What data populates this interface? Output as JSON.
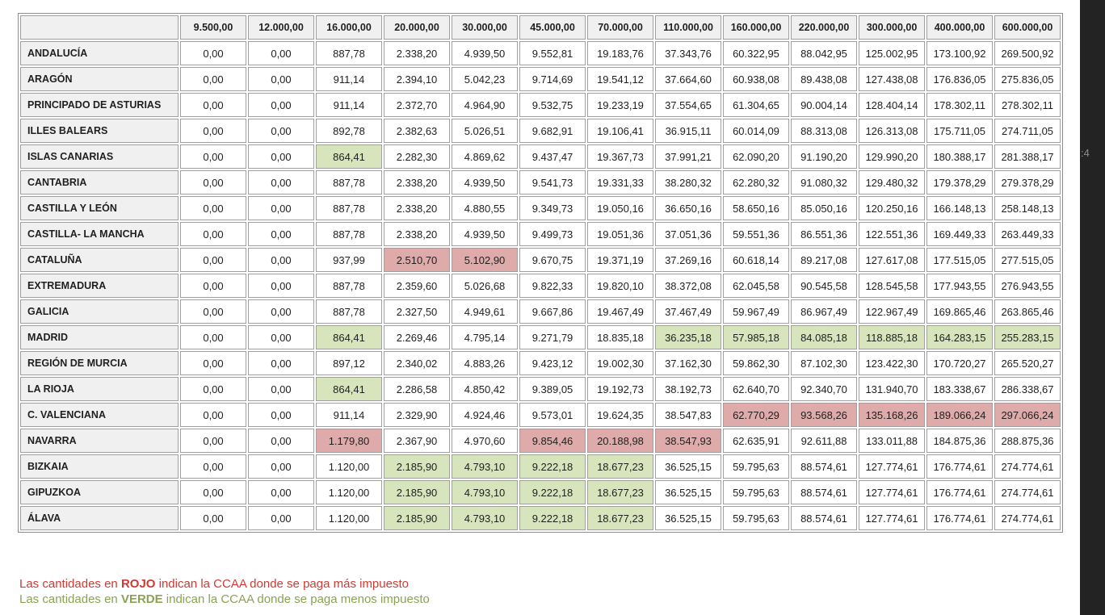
{
  "table": {
    "columns": [
      "9.500,00",
      "12.000,00",
      "16.000,00",
      "20.000,00",
      "30.000,00",
      "45.000,00",
      "70.000,00",
      "110.000,00",
      "160.000,00",
      "220.000,00",
      "300.000,00",
      "400.000,00",
      "600.000,00"
    ],
    "rows": [
      {
        "label": "ANDALUCÍA",
        "values": [
          "0,00",
          "0,00",
          "887,78",
          "2.338,20",
          "4.939,50",
          "9.552,81",
          "19.183,76",
          "37.343,76",
          "60.322,95",
          "88.042,95",
          "125.002,95",
          "173.100,92",
          "269.500,92"
        ],
        "highlights": [
          "",
          "",
          "",
          "",
          "",
          "",
          "",
          "",
          "",
          "",
          "",
          "",
          ""
        ]
      },
      {
        "label": "ARAGÓN",
        "values": [
          "0,00",
          "0,00",
          "911,14",
          "2.394,10",
          "5.042,23",
          "9.714,69",
          "19.541,12",
          "37.664,60",
          "60.938,08",
          "89.438,08",
          "127.438,08",
          "176.836,05",
          "275.836,05"
        ],
        "highlights": [
          "",
          "",
          "",
          "",
          "",
          "",
          "",
          "",
          "",
          "",
          "",
          "",
          ""
        ]
      },
      {
        "label": "PRINCIPADO DE ASTURIAS",
        "values": [
          "0,00",
          "0,00",
          "911,14",
          "2.372,70",
          "4.964,90",
          "9.532,75",
          "19.233,19",
          "37.554,65",
          "61.304,65",
          "90.004,14",
          "128.404,14",
          "178.302,11",
          "278.302,11"
        ],
        "highlights": [
          "",
          "",
          "",
          "",
          "",
          "",
          "",
          "",
          "",
          "",
          "",
          "",
          ""
        ]
      },
      {
        "label": "ILLES BALEARS",
        "values": [
          "0,00",
          "0,00",
          "892,78",
          "2.382,63",
          "5.026,51",
          "9.682,91",
          "19.106,41",
          "36.915,11",
          "60.014,09",
          "88.313,08",
          "126.313,08",
          "175.711,05",
          "274.711,05"
        ],
        "highlights": [
          "",
          "",
          "",
          "",
          "",
          "",
          "",
          "",
          "",
          "",
          "",
          "",
          ""
        ]
      },
      {
        "label": "ISLAS CANARIAS",
        "values": [
          "0,00",
          "0,00",
          "864,41",
          "2.282,30",
          "4.869,62",
          "9.437,47",
          "19.367,73",
          "37.991,21",
          "62.090,20",
          "91.190,20",
          "129.990,20",
          "180.388,17",
          "281.388,17"
        ],
        "highlights": [
          "",
          "",
          "G",
          "",
          "",
          "",
          "",
          "",
          "",
          "",
          "",
          "",
          ""
        ]
      },
      {
        "label": "CANTABRIA",
        "values": [
          "0,00",
          "0,00",
          "887,78",
          "2.338,20",
          "4.939,50",
          "9.541,73",
          "19.331,33",
          "38.280,32",
          "62.280,32",
          "91.080,32",
          "129.480,32",
          "179.378,29",
          "279.378,29"
        ],
        "highlights": [
          "",
          "",
          "",
          "",
          "",
          "",
          "",
          "",
          "",
          "",
          "",
          "",
          ""
        ]
      },
      {
        "label": "CASTILLA Y LEÓN",
        "values": [
          "0,00",
          "0,00",
          "887,78",
          "2.338,20",
          "4.880,55",
          "9.349,73",
          "19.050,16",
          "36.650,16",
          "58.650,16",
          "85.050,16",
          "120.250,16",
          "166.148,13",
          "258.148,13"
        ],
        "highlights": [
          "",
          "",
          "",
          "",
          "",
          "",
          "",
          "",
          "",
          "",
          "",
          "",
          ""
        ]
      },
      {
        "label": "CASTILLA- LA MANCHA",
        "values": [
          "0,00",
          "0,00",
          "887,78",
          "2.338,20",
          "4.939,50",
          "9.499,73",
          "19.051,36",
          "37.051,36",
          "59.551,36",
          "86.551,36",
          "122.551,36",
          "169.449,33",
          "263.449,33"
        ],
        "highlights": [
          "",
          "",
          "",
          "",
          "",
          "",
          "",
          "",
          "",
          "",
          "",
          "",
          ""
        ]
      },
      {
        "label": "CATALUÑA",
        "values": [
          "0,00",
          "0,00",
          "937,99",
          "2.510,70",
          "5.102,90",
          "9.670,75",
          "19.371,19",
          "37.269,16",
          "60.618,14",
          "89.217,08",
          "127.617,08",
          "177.515,05",
          "277.515,05"
        ],
        "highlights": [
          "",
          "",
          "",
          "R",
          "R",
          "",
          "",
          "",
          "",
          "",
          "",
          "",
          ""
        ]
      },
      {
        "label": "EXTREMADURA",
        "values": [
          "0,00",
          "0,00",
          "887,78",
          "2.359,60",
          "5.026,68",
          "9.822,33",
          "19.820,10",
          "38.372,08",
          "62.045,58",
          "90.545,58",
          "128.545,58",
          "177.943,55",
          "276.943,55"
        ],
        "highlights": [
          "",
          "",
          "",
          "",
          "",
          "",
          "",
          "",
          "",
          "",
          "",
          "",
          ""
        ]
      },
      {
        "label": "GALICIA",
        "values": [
          "0,00",
          "0,00",
          "887,78",
          "2.327,50",
          "4.949,61",
          "9.667,86",
          "19.467,49",
          "37.467,49",
          "59.967,49",
          "86.967,49",
          "122.967,49",
          "169.865,46",
          "263.865,46"
        ],
        "highlights": [
          "",
          "",
          "",
          "",
          "",
          "",
          "",
          "",
          "",
          "",
          "",
          "",
          ""
        ]
      },
      {
        "label": "MADRID",
        "values": [
          "0,00",
          "0,00",
          "864,41",
          "2.269,46",
          "4.795,14",
          "9.271,79",
          "18.835,18",
          "36.235,18",
          "57.985,18",
          "84.085,18",
          "118.885,18",
          "164.283,15",
          "255.283,15"
        ],
        "highlights": [
          "",
          "",
          "G",
          "",
          "",
          "",
          "",
          "G",
          "G",
          "G",
          "G",
          "G",
          "G"
        ]
      },
      {
        "label": "REGIÓN DE MURCIA",
        "values": [
          "0,00",
          "0,00",
          "897,12",
          "2.340,02",
          "4.883,26",
          "9.423,12",
          "19.002,30",
          "37.162,30",
          "59.862,30",
          "87.102,30",
          "123.422,30",
          "170.720,27",
          "265.520,27"
        ],
        "highlights": [
          "",
          "",
          "",
          "",
          "",
          "",
          "",
          "",
          "",
          "",
          "",
          "",
          ""
        ]
      },
      {
        "label": "LA RIOJA",
        "values": [
          "0,00",
          "0,00",
          "864,41",
          "2.286,58",
          "4.850,42",
          "9.389,05",
          "19.192,73",
          "38.192,73",
          "62.640,70",
          "92.340,70",
          "131.940,70",
          "183.338,67",
          "286.338,67"
        ],
        "highlights": [
          "",
          "",
          "G",
          "",
          "",
          "",
          "",
          "",
          "",
          "",
          "",
          "",
          ""
        ]
      },
      {
        "label": "C. VALENCIANA",
        "values": [
          "0,00",
          "0,00",
          "911,14",
          "2.329,90",
          "4.924,46",
          "9.573,01",
          "19.624,35",
          "38.547,83",
          "62.770,29",
          "93.568,26",
          "135.168,26",
          "189.066,24",
          "297.066,24"
        ],
        "highlights": [
          "",
          "",
          "",
          "",
          "",
          "",
          "",
          "",
          "R",
          "R",
          "R",
          "R",
          "R"
        ]
      },
      {
        "label": "NAVARRA",
        "values": [
          "0,00",
          "0,00",
          "1.179,80",
          "2.367,90",
          "4.970,60",
          "9.854,46",
          "20.188,98",
          "38.547,93",
          "62.635,91",
          "92.611,88",
          "133.011,88",
          "184.875,36",
          "288.875,36"
        ],
        "highlights": [
          "",
          "",
          "R",
          "",
          "",
          "R",
          "R",
          "R",
          "",
          "",
          "",
          "",
          ""
        ]
      },
      {
        "label": "BIZKAIA",
        "values": [
          "0,00",
          "0,00",
          "1.120,00",
          "2.185,90",
          "4.793,10",
          "9.222,18",
          "18.677,23",
          "36.525,15",
          "59.795,63",
          "88.574,61",
          "127.774,61",
          "176.774,61",
          "274.774,61"
        ],
        "highlights": [
          "",
          "",
          "",
          "G",
          "G",
          "G",
          "G",
          "",
          "",
          "",
          "",
          "",
          ""
        ]
      },
      {
        "label": "GIPUZKOA",
        "values": [
          "0,00",
          "0,00",
          "1.120,00",
          "2.185,90",
          "4.793,10",
          "9.222,18",
          "18.677,23",
          "36.525,15",
          "59.795,63",
          "88.574,61",
          "127.774,61",
          "176.774,61",
          "274.774,61"
        ],
        "highlights": [
          "",
          "",
          "",
          "G",
          "G",
          "G",
          "G",
          "",
          "",
          "",
          "",
          "",
          ""
        ]
      },
      {
        "label": "ÁLAVA",
        "values": [
          "0,00",
          "0,00",
          "1.120,00",
          "2.185,90",
          "4.793,10",
          "9.222,18",
          "18.677,23",
          "36.525,15",
          "59.795,63",
          "88.574,61",
          "127.774,61",
          "176.774,61",
          "274.774,61"
        ],
        "highlights": [
          "",
          "",
          "",
          "G",
          "G",
          "G",
          "G",
          "",
          "",
          "",
          "",
          "",
          ""
        ]
      }
    ]
  },
  "legend": {
    "red": {
      "prefix": "Las cantidades en ",
      "bold": "ROJO",
      "suffix": " indican la CCAA donde se paga más impuesto"
    },
    "green": {
      "prefix": "Las cantidades en ",
      "bold": "VERDE",
      "suffix": " indican la CCAA donde se paga menos impuesto"
    }
  },
  "side_strip": {
    "fragment": ":4"
  },
  "colors": {
    "green_highlight": "#d7e4bc",
    "red_highlight": "#dfabaa",
    "header_bg": "#f0f0f0",
    "border": "#a0a0a0",
    "legend_red": "#d03a32",
    "legend_green": "#8aa353",
    "strip_bg": "#232323"
  }
}
